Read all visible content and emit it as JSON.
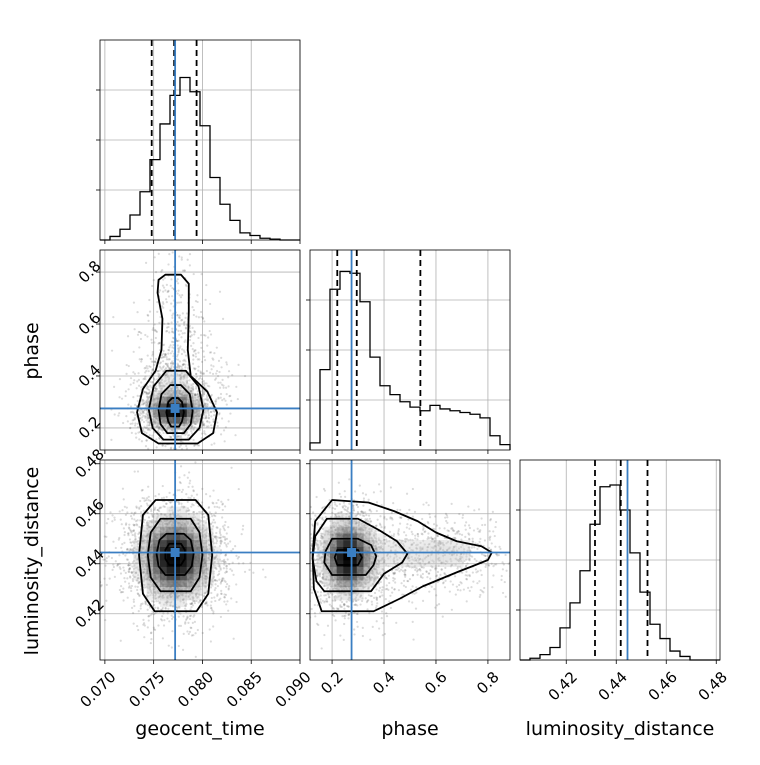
{
  "chart_data": {
    "type": "corner",
    "parameters": [
      "geocent_time",
      "phase",
      "luminosity_distance"
    ],
    "axis_labels": {
      "geocent_time": "geocent_time",
      "phase": "phase",
      "luminosity_distance": "luminosity_distance"
    },
    "ranges": {
      "geocent_time": [
        0.0695,
        0.09
      ],
      "phase": [
        0.115,
        0.885
      ],
      "luminosity_distance": [
        0.4015,
        0.4815
      ]
    },
    "ticks": {
      "geocent_time": {
        "values": [
          0.07,
          0.075,
          0.08,
          0.085,
          0.09
        ],
        "labels": [
          "0.070",
          "0.075",
          "0.080",
          "0.085",
          "0.090"
        ]
      },
      "phase": {
        "values": [
          0.2,
          0.4,
          0.6,
          0.8
        ],
        "labels": [
          "0.2",
          "0.4",
          "0.6",
          "0.8"
        ]
      },
      "luminosity_distance": {
        "values": [
          0.42,
          0.44,
          0.46,
          0.48
        ],
        "labels": [
          "0.42",
          "0.44",
          "0.46",
          "0.48"
        ]
      }
    },
    "truths": {
      "geocent_time": 0.0772,
      "phase": 0.275,
      "luminosity_distance": 0.4445
    },
    "quantiles": {
      "geocent_time": [
        0.0748,
        0.0771,
        0.0794
      ],
      "phase": [
        0.22,
        0.295,
        0.54
      ],
      "luminosity_distance": [
        0.4315,
        0.4418,
        0.4525
      ]
    },
    "histograms": {
      "geocent_time": [
        0.0,
        0.02,
        0.06,
        0.14,
        0.27,
        0.45,
        0.65,
        0.81,
        0.91,
        0.83,
        0.64,
        0.35,
        0.2,
        0.11,
        0.04,
        0.025,
        0.01,
        0.005,
        0.0,
        0.0
      ],
      "phase": [
        0.04,
        0.45,
        0.9,
        1.0,
        0.99,
        0.83,
        0.52,
        0.36,
        0.31,
        0.27,
        0.24,
        0.22,
        0.25,
        0.23,
        0.22,
        0.21,
        0.2,
        0.18,
        0.08,
        0.03
      ],
      "luminosity_distance": [
        0.0,
        0.01,
        0.03,
        0.07,
        0.18,
        0.32,
        0.5,
        0.76,
        0.97,
        0.98,
        0.84,
        0.6,
        0.38,
        0.2,
        0.12,
        0.05,
        0.02,
        0.0,
        0.0,
        0.0
      ]
    },
    "hist_ylim": 1.12,
    "density_blobs": {
      "phase_vs_geocent_time": [
        {
          "x": 0.0772,
          "y": 0.265,
          "sx": 0.0014,
          "sy": 0.035,
          "w": 1.0
        },
        {
          "x": 0.0772,
          "y": 0.34,
          "sx": 0.0019,
          "sy": 0.09,
          "w": 0.55
        },
        {
          "x": 0.0771,
          "y": 0.55,
          "sx": 0.0013,
          "sy": 0.16,
          "w": 0.2
        }
      ],
      "luminosity_distance_vs_geocent_time": [
        {
          "x": 0.0772,
          "y": 0.4425,
          "sx": 0.0021,
          "sy": 0.0095,
          "w": 1.0
        }
      ],
      "luminosity_distance_vs_phase": [
        {
          "x": 0.26,
          "y": 0.4425,
          "sx": 0.055,
          "sy": 0.0085,
          "w": 1.0
        },
        {
          "x": 0.45,
          "y": 0.4435,
          "sx": 0.15,
          "sy": 0.0075,
          "w": 0.35
        },
        {
          "x": 0.67,
          "y": 0.4445,
          "sx": 0.1,
          "sy": 0.006,
          "w": 0.18
        }
      ]
    },
    "contours": {
      "phase_vs_geocent_time": [
        [
          [
            0.0768,
            0.205
          ],
          [
            0.0776,
            0.205
          ],
          [
            0.0779,
            0.225
          ],
          [
            0.0781,
            0.26
          ],
          [
            0.0779,
            0.3
          ],
          [
            0.0775,
            0.315
          ],
          [
            0.0769,
            0.315
          ],
          [
            0.0765,
            0.3
          ],
          [
            0.0763,
            0.26
          ],
          [
            0.0765,
            0.225
          ]
        ],
        [
          [
            0.0764,
            0.18
          ],
          [
            0.0781,
            0.18
          ],
          [
            0.0788,
            0.215
          ],
          [
            0.079,
            0.265
          ],
          [
            0.0787,
            0.33
          ],
          [
            0.0778,
            0.365
          ],
          [
            0.0767,
            0.365
          ],
          [
            0.0758,
            0.33
          ],
          [
            0.0755,
            0.27
          ],
          [
            0.0757,
            0.215
          ]
        ],
        [
          [
            0.076,
            0.155
          ],
          [
            0.0786,
            0.155
          ],
          [
            0.0797,
            0.2
          ],
          [
            0.0801,
            0.27
          ],
          [
            0.0796,
            0.36
          ],
          [
            0.0783,
            0.42
          ],
          [
            0.0763,
            0.42
          ],
          [
            0.075,
            0.36
          ],
          [
            0.0745,
            0.27
          ],
          [
            0.0749,
            0.2
          ]
        ],
        [
          [
            0.0755,
            0.14
          ],
          [
            0.0795,
            0.14
          ],
          [
            0.0811,
            0.18
          ],
          [
            0.0815,
            0.26
          ],
          [
            0.0805,
            0.34
          ],
          [
            0.0788,
            0.4
          ],
          [
            0.0785,
            0.5
          ],
          [
            0.0786,
            0.65
          ],
          [
            0.0786,
            0.755
          ],
          [
            0.0778,
            0.79
          ],
          [
            0.0762,
            0.79
          ],
          [
            0.0755,
            0.77
          ],
          [
            0.0754,
            0.72
          ],
          [
            0.0759,
            0.62
          ],
          [
            0.0758,
            0.5
          ],
          [
            0.0752,
            0.42
          ],
          [
            0.0739,
            0.35
          ],
          [
            0.0733,
            0.26
          ],
          [
            0.0738,
            0.18
          ]
        ]
      ],
      "luminosity_distance_vs_geocent_time": [
        [
          [
            0.0766,
            0.4395
          ],
          [
            0.0778,
            0.4395
          ],
          [
            0.0782,
            0.442
          ],
          [
            0.0782,
            0.4455
          ],
          [
            0.0778,
            0.448
          ],
          [
            0.0766,
            0.448
          ],
          [
            0.0762,
            0.4455
          ],
          [
            0.0762,
            0.442
          ]
        ],
        [
          [
            0.0762,
            0.4355
          ],
          [
            0.0782,
            0.4355
          ],
          [
            0.0789,
            0.439
          ],
          [
            0.0791,
            0.444
          ],
          [
            0.0788,
            0.4495
          ],
          [
            0.0781,
            0.452
          ],
          [
            0.0763,
            0.452
          ],
          [
            0.0756,
            0.4495
          ],
          [
            0.0753,
            0.444
          ],
          [
            0.0755,
            0.439
          ]
        ],
        [
          [
            0.0757,
            0.429
          ],
          [
            0.0788,
            0.429
          ],
          [
            0.0797,
            0.4345
          ],
          [
            0.08,
            0.4435
          ],
          [
            0.0797,
            0.4525
          ],
          [
            0.0788,
            0.458
          ],
          [
            0.0757,
            0.458
          ],
          [
            0.0747,
            0.4525
          ],
          [
            0.0744,
            0.4435
          ],
          [
            0.0747,
            0.4345
          ]
        ],
        [
          [
            0.0751,
            0.421
          ],
          [
            0.0794,
            0.421
          ],
          [
            0.0806,
            0.428
          ],
          [
            0.081,
            0.4435
          ],
          [
            0.0806,
            0.4595
          ],
          [
            0.0793,
            0.4655
          ],
          [
            0.0752,
            0.4655
          ],
          [
            0.0739,
            0.4595
          ],
          [
            0.0735,
            0.4435
          ],
          [
            0.0739,
            0.428
          ]
        ]
      ],
      "luminosity_distance_vs_phase": [
        [
          [
            0.22,
            0.4395
          ],
          [
            0.3,
            0.4395
          ],
          [
            0.315,
            0.4425
          ],
          [
            0.3,
            0.4455
          ],
          [
            0.22,
            0.4455
          ],
          [
            0.21,
            0.4425
          ]
        ],
        [
          [
            0.2,
            0.4355
          ],
          [
            0.33,
            0.4355
          ],
          [
            0.36,
            0.4395
          ],
          [
            0.37,
            0.443
          ],
          [
            0.35,
            0.4475
          ],
          [
            0.3,
            0.45
          ],
          [
            0.2,
            0.45
          ],
          [
            0.175,
            0.445
          ],
          [
            0.17,
            0.4405
          ]
        ],
        [
          [
            0.17,
            0.429
          ],
          [
            0.35,
            0.429
          ],
          [
            0.4,
            0.436
          ],
          [
            0.47,
            0.4405
          ],
          [
            0.49,
            0.444
          ],
          [
            0.45,
            0.449
          ],
          [
            0.38,
            0.4535
          ],
          [
            0.3,
            0.458
          ],
          [
            0.18,
            0.458
          ],
          [
            0.135,
            0.451
          ],
          [
            0.125,
            0.442
          ],
          [
            0.14,
            0.433
          ]
        ],
        [
          [
            0.16,
            0.421
          ],
          [
            0.36,
            0.421
          ],
          [
            0.46,
            0.426
          ],
          [
            0.55,
            0.431
          ],
          [
            0.62,
            0.434
          ],
          [
            0.69,
            0.437
          ],
          [
            0.74,
            0.439
          ],
          [
            0.8,
            0.4415
          ],
          [
            0.815,
            0.4445
          ],
          [
            0.775,
            0.447
          ],
          [
            0.68,
            0.449
          ],
          [
            0.6,
            0.4525
          ],
          [
            0.53,
            0.457
          ],
          [
            0.44,
            0.461
          ],
          [
            0.34,
            0.4645
          ],
          [
            0.2,
            0.4655
          ],
          [
            0.135,
            0.457
          ],
          [
            0.125,
            0.4435
          ],
          [
            0.13,
            0.43
          ]
        ]
      ]
    }
  }
}
